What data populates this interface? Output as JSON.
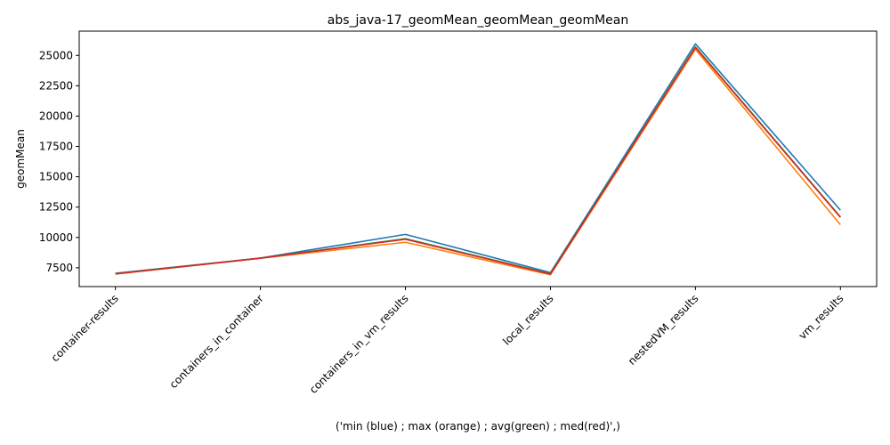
{
  "chart_data": {
    "type": "line",
    "title": "abs_java-17_geomMean_geomMean_geomMean",
    "xlabel": "('min (blue) ; max (orange) ; avg(green) ; med(red)',)",
    "ylabel": "geomMean",
    "categories": [
      "container-results",
      "containers_in_container",
      "containers_in_vm_results",
      "local_results",
      "nestedVM_results",
      "vm_results"
    ],
    "ylim": [
      5950,
      27000
    ],
    "yticks": [
      7500,
      10000,
      12500,
      15000,
      17500,
      20000,
      22500,
      25000
    ],
    "ytick_labels": [
      "7500",
      "10000",
      "12500",
      "15000",
      "17500",
      "20000",
      "22500",
      "25000"
    ],
    "grid": false,
    "series": [
      {
        "color": "#1f77b4",
        "values": [
          7050,
          8300,
          10250,
          7100,
          25950,
          12250
        ]
      },
      {
        "color": "#ff7f0e",
        "values": [
          6980,
          8280,
          9600,
          6920,
          25500,
          11050
        ]
      },
      {
        "color": "#2ca02c",
        "values": [
          7010,
          8290,
          9900,
          7000,
          25700,
          11700
        ]
      },
      {
        "color": "#d62728",
        "values": [
          7000,
          8290,
          9850,
          6980,
          25650,
          11650
        ]
      }
    ]
  }
}
